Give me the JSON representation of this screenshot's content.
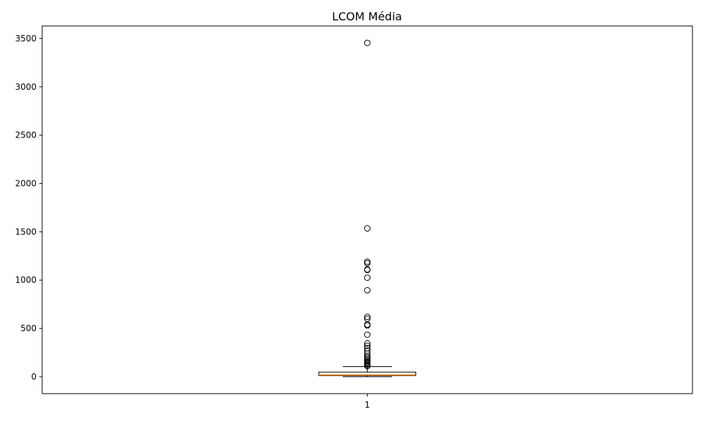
{
  "chart_data": {
    "type": "boxplot",
    "title": "LCOM Média",
    "xlabel": "",
    "ylabel": "",
    "ylim": [
      -175,
      3630
    ],
    "y_ticks": [
      0,
      500,
      1000,
      1500,
      2000,
      2500,
      3000,
      3500
    ],
    "x_tick_labels": [
      "1"
    ],
    "grid": false,
    "boxes": [
      {
        "label": "1",
        "whisker_low": 0,
        "q1": 12,
        "median": 18,
        "q3": 48,
        "whisker_high": 105,
        "outliers": [
          3455,
          1535,
          1190,
          1175,
          1110,
          1105,
          1025,
          895,
          620,
          600,
          540,
          530,
          435,
          345,
          320,
          295,
          270,
          240,
          215,
          200,
          185,
          170,
          160,
          150,
          140,
          130,
          120,
          110
        ]
      }
    ],
    "colors": {
      "median": "#ff7f0e",
      "box_edge": "#000000",
      "outlier_edge": "#000000"
    }
  }
}
